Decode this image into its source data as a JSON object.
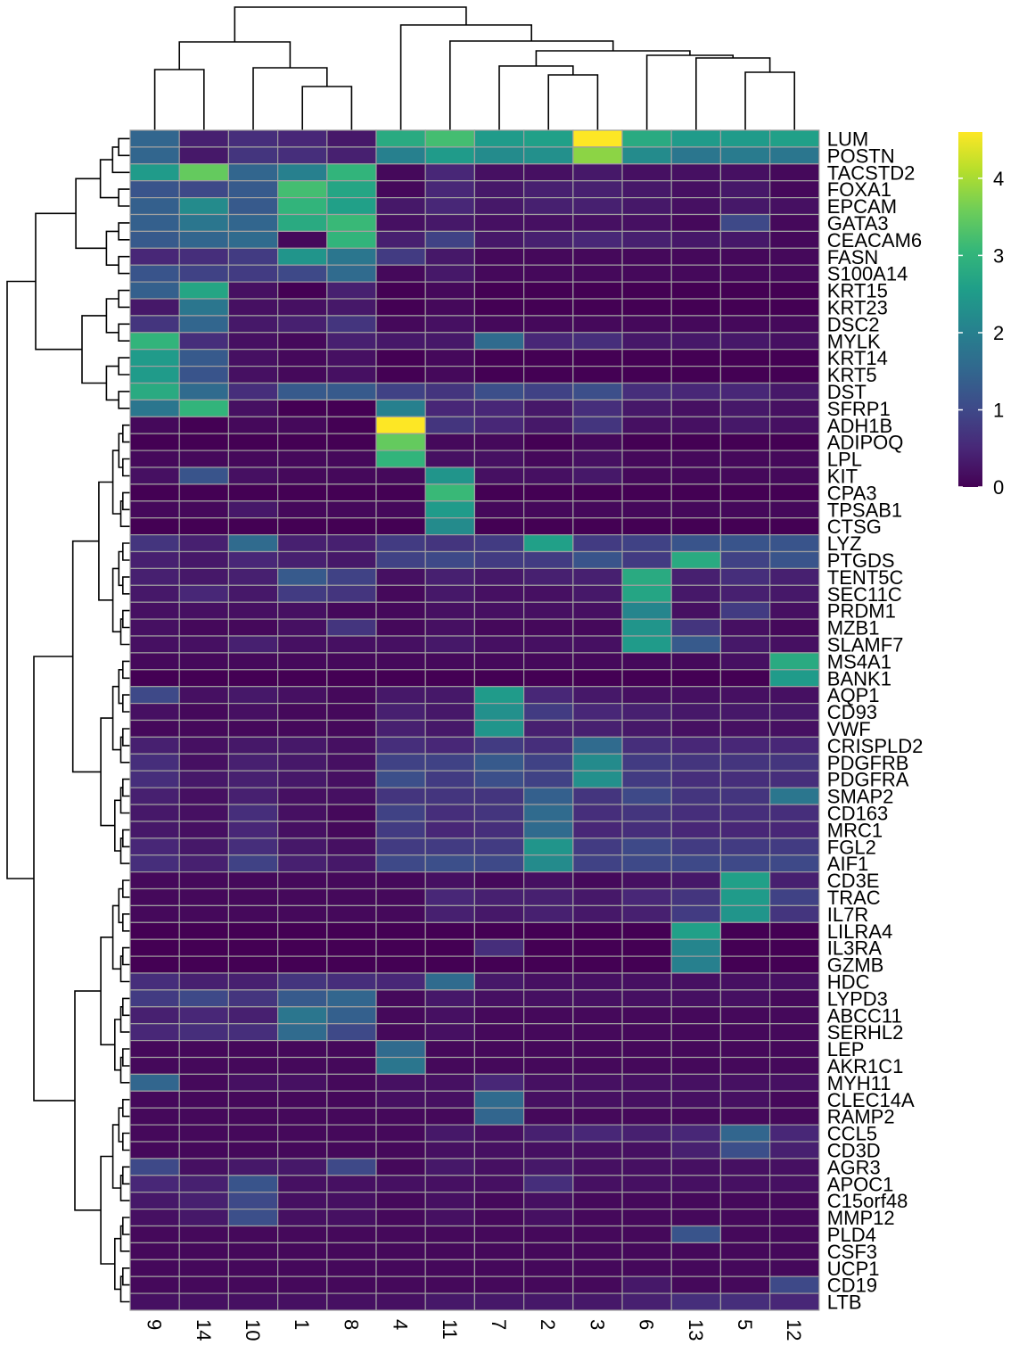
{
  "chart_data": {
    "type": "heatmap",
    "title": "",
    "columns": [
      "9",
      "14",
      "10",
      "1",
      "8",
      "4",
      "11",
      "7",
      "2",
      "3",
      "6",
      "13",
      "5",
      "12"
    ],
    "rows": [
      "LUM",
      "POSTN",
      "TACSTD2",
      "FOXA1",
      "EPCAM",
      "GATA3",
      "CEACAM6",
      "FASN",
      "S100A14",
      "KRT15",
      "KRT23",
      "DSC2",
      "MYLK",
      "KRT14",
      "KRT5",
      "DST",
      "SFRP1",
      "ADH1B",
      "ADIPOQ",
      "LPL",
      "KIT",
      "CPA3",
      "TPSAB1",
      "CTSG",
      "LYZ",
      "PTGDS",
      "TENT5C",
      "SEC11C",
      "PRDM1",
      "MZB1",
      "SLAMF7",
      "MS4A1",
      "BANK1",
      "AQP1",
      "CD93",
      "VWF",
      "CRISPLD2",
      "PDGFRB",
      "PDGFRA",
      "SMAP2",
      "CD163",
      "MRC1",
      "FGL2",
      "AIF1",
      "CD3E",
      "TRAC",
      "IL7R",
      "LILRA4",
      "IL3RA",
      "GZMB",
      "HDC",
      "LYPD3",
      "ABCC11",
      "SERHL2",
      "LEP",
      "AKR1C1",
      "MYH11",
      "CLEC14A",
      "RAMP2",
      "CCL5",
      "CD3D",
      "AGR3",
      "APOC1",
      "C15orf48",
      "MMP12",
      "PLD4",
      "CSF3",
      "UCP1",
      "CD19",
      "LTB"
    ],
    "values": [
      [
        1.5,
        0.4,
        0.6,
        0.5,
        0.3,
        2.8,
        3.2,
        2.5,
        2.6,
        4.6,
        2.8,
        2.5,
        2.5,
        2.6
      ],
      [
        1.5,
        0.3,
        0.7,
        0.6,
        0.4,
        2.0,
        2.5,
        2.2,
        2.3,
        3.8,
        2.2,
        1.8,
        1.9,
        1.8
      ],
      [
        2.5,
        3.5,
        1.5,
        2.0,
        3.0,
        0.1,
        0.5,
        0.2,
        0.2,
        0.3,
        0.2,
        0.2,
        0.2,
        0.1
      ],
      [
        1.2,
        1.0,
        1.3,
        3.2,
        2.7,
        0.1,
        0.5,
        0.3,
        0.4,
        0.4,
        0.3,
        0.2,
        0.3,
        0.1
      ],
      [
        1.4,
        2.2,
        1.3,
        3.0,
        2.6,
        0.3,
        0.5,
        0.3,
        0.4,
        0.4,
        0.3,
        0.2,
        0.3,
        0.2
      ],
      [
        1.4,
        1.8,
        1.5,
        2.8,
        3.1,
        0.2,
        0.3,
        0.2,
        0.2,
        0.2,
        0.2,
        0.1,
        1.0,
        0.1
      ],
      [
        1.3,
        1.5,
        1.6,
        0.1,
        3.0,
        0.4,
        0.9,
        0.3,
        0.4,
        0.5,
        0.4,
        0.3,
        0.3,
        0.1
      ],
      [
        0.5,
        0.6,
        0.8,
        2.4,
        1.8,
        0.8,
        0.3,
        0.1,
        0.1,
        0.1,
        0.1,
        0.1,
        0.1,
        0.1
      ],
      [
        1.2,
        0.9,
        0.8,
        1.0,
        1.6,
        0.1,
        0.3,
        0.1,
        0.1,
        0.1,
        0.1,
        0.1,
        0.1,
        0.1
      ],
      [
        1.4,
        2.7,
        0.2,
        0.0,
        0.4,
        0.0,
        0.1,
        0.0,
        0.0,
        0.0,
        0.0,
        0.0,
        0.0,
        0.0
      ],
      [
        0.3,
        1.8,
        0.2,
        0.2,
        0.3,
        0.0,
        0.1,
        0.0,
        0.0,
        0.0,
        0.0,
        0.0,
        0.0,
        0.0
      ],
      [
        0.7,
        1.5,
        0.3,
        0.4,
        0.7,
        0.1,
        0.2,
        0.1,
        0.1,
        0.1,
        0.1,
        0.1,
        0.1,
        0.1
      ],
      [
        3.0,
        0.6,
        0.2,
        0.1,
        0.4,
        0.3,
        0.3,
        1.6,
        0.5,
        0.6,
        0.3,
        0.3,
        0.3,
        0.2
      ],
      [
        2.5,
        1.3,
        0.2,
        0.1,
        0.2,
        0.0,
        0.1,
        0.0,
        0.0,
        0.0,
        0.0,
        0.0,
        0.0,
        0.0
      ],
      [
        2.5,
        1.2,
        0.2,
        0.1,
        0.2,
        0.0,
        0.1,
        0.0,
        0.0,
        0.0,
        0.0,
        0.0,
        0.0,
        0.0
      ],
      [
        2.8,
        1.6,
        0.6,
        1.3,
        1.3,
        0.9,
        0.7,
        1.1,
        0.9,
        1.1,
        0.6,
        0.5,
        0.5,
        0.3
      ],
      [
        1.8,
        3.0,
        0.2,
        0.0,
        0.0,
        2.0,
        0.5,
        0.5,
        0.3,
        0.6,
        0.3,
        0.2,
        0.3,
        0.2
      ],
      [
        0.1,
        0.0,
        0.1,
        0.1,
        0.0,
        4.6,
        0.7,
        0.5,
        0.3,
        0.7,
        0.2,
        0.2,
        0.3,
        0.2
      ],
      [
        0.0,
        0.0,
        0.0,
        0.0,
        0.0,
        3.5,
        0.1,
        0.1,
        0.0,
        0.1,
        0.0,
        0.0,
        0.0,
        0.0
      ],
      [
        0.1,
        0.1,
        0.1,
        0.1,
        0.1,
        3.0,
        0.2,
        0.2,
        0.1,
        0.2,
        0.1,
        0.1,
        0.1,
        0.1
      ],
      [
        0.2,
        1.2,
        0.2,
        0.1,
        0.1,
        0.1,
        2.4,
        0.2,
        0.2,
        0.3,
        0.1,
        0.1,
        0.1,
        0.1
      ],
      [
        0.0,
        0.0,
        0.0,
        0.0,
        0.0,
        0.0,
        3.1,
        0.0,
        0.0,
        0.0,
        0.0,
        0.0,
        0.0,
        0.0
      ],
      [
        0.1,
        0.1,
        0.3,
        0.1,
        0.1,
        0.1,
        2.5,
        0.1,
        0.1,
        0.1,
        0.1,
        0.1,
        0.1,
        0.1
      ],
      [
        0.0,
        0.0,
        0.0,
        0.0,
        0.0,
        0.0,
        2.2,
        0.0,
        0.0,
        0.0,
        0.0,
        0.0,
        0.0,
        0.0
      ],
      [
        0.7,
        0.4,
        1.6,
        0.4,
        0.4,
        0.8,
        0.7,
        0.8,
        2.6,
        0.8,
        0.9,
        1.2,
        1.2,
        1.2
      ],
      [
        0.4,
        0.3,
        0.5,
        0.4,
        0.3,
        0.9,
        1.0,
        0.8,
        0.8,
        1.2,
        0.8,
        2.8,
        0.9,
        1.2
      ],
      [
        0.4,
        0.3,
        0.4,
        1.3,
        0.9,
        0.2,
        0.4,
        0.3,
        0.4,
        0.4,
        2.8,
        0.4,
        0.6,
        0.4
      ],
      [
        0.3,
        0.5,
        0.3,
        0.8,
        0.7,
        0.1,
        0.3,
        0.2,
        0.2,
        0.3,
        2.7,
        0.3,
        0.4,
        0.3
      ],
      [
        0.2,
        0.2,
        0.2,
        0.2,
        0.1,
        0.1,
        0.2,
        0.2,
        0.2,
        0.2,
        2.1,
        0.2,
        0.8,
        0.2
      ],
      [
        0.2,
        0.1,
        0.1,
        0.2,
        0.7,
        0.1,
        0.2,
        0.1,
        0.1,
        0.1,
        2.4,
        0.7,
        0.2,
        0.1
      ],
      [
        0.2,
        0.2,
        0.4,
        0.2,
        0.2,
        0.2,
        0.3,
        0.2,
        0.2,
        0.2,
        2.5,
        1.3,
        0.3,
        0.2
      ],
      [
        0.1,
        0.1,
        0.1,
        0.1,
        0.1,
        0.1,
        0.1,
        0.1,
        0.1,
        0.1,
        0.1,
        0.1,
        0.2,
        2.8
      ],
      [
        0.0,
        0.0,
        0.0,
        0.0,
        0.0,
        0.0,
        0.0,
        0.0,
        0.0,
        0.0,
        0.0,
        0.0,
        0.0,
        2.5
      ],
      [
        1.0,
        0.2,
        0.3,
        0.2,
        0.1,
        0.3,
        0.3,
        2.5,
        0.5,
        0.3,
        0.2,
        0.2,
        0.2,
        0.2
      ],
      [
        0.2,
        0.1,
        0.2,
        0.1,
        0.1,
        0.4,
        0.3,
        2.3,
        0.8,
        0.5,
        0.4,
        0.3,
        0.3,
        0.3
      ],
      [
        0.1,
        0.1,
        0.1,
        0.1,
        0.1,
        0.4,
        0.3,
        2.4,
        0.4,
        0.4,
        0.3,
        0.2,
        0.2,
        0.2
      ],
      [
        0.4,
        0.2,
        0.3,
        0.3,
        0.2,
        0.6,
        0.5,
        0.8,
        0.6,
        1.6,
        0.6,
        0.5,
        0.5,
        0.5
      ],
      [
        0.6,
        0.2,
        0.4,
        0.3,
        0.2,
        0.9,
        0.9,
        1.3,
        0.9,
        2.2,
        0.8,
        0.7,
        0.7,
        0.7
      ],
      [
        0.6,
        0.3,
        0.4,
        0.3,
        0.2,
        1.1,
        0.8,
        1.1,
        0.9,
        2.3,
        0.8,
        0.6,
        0.6,
        0.6
      ],
      [
        0.4,
        0.2,
        0.4,
        0.2,
        0.2,
        0.7,
        0.7,
        0.7,
        1.4,
        0.7,
        1.0,
        0.7,
        0.7,
        1.8
      ],
      [
        0.3,
        0.2,
        0.6,
        0.2,
        0.1,
        0.9,
        0.6,
        0.7,
        1.6,
        0.6,
        0.7,
        0.6,
        0.6,
        0.6
      ],
      [
        0.3,
        0.2,
        0.5,
        0.2,
        0.1,
        0.8,
        0.5,
        0.6,
        1.6,
        0.5,
        0.6,
        0.5,
        0.5,
        0.5
      ],
      [
        0.5,
        0.3,
        0.6,
        0.3,
        0.2,
        0.8,
        0.8,
        0.8,
        2.4,
        0.8,
        1.0,
        0.8,
        0.8,
        0.8
      ],
      [
        0.6,
        0.4,
        0.9,
        0.4,
        0.3,
        1.0,
        1.1,
        1.0,
        2.2,
        0.9,
        1.0,
        1.0,
        1.0,
        1.0
      ],
      [
        0.1,
        0.1,
        0.1,
        0.1,
        0.1,
        0.1,
        0.2,
        0.1,
        0.2,
        0.1,
        0.2,
        0.3,
        2.6,
        0.4
      ],
      [
        0.1,
        0.1,
        0.1,
        0.1,
        0.1,
        0.1,
        0.5,
        0.4,
        0.4,
        0.3,
        0.5,
        0.7,
        2.5,
        0.9
      ],
      [
        0.1,
        0.1,
        0.1,
        0.1,
        0.1,
        0.1,
        0.4,
        0.3,
        0.4,
        0.3,
        0.4,
        0.8,
        2.4,
        0.7
      ],
      [
        0.0,
        0.0,
        0.0,
        0.0,
        0.0,
        0.0,
        0.0,
        0.0,
        0.0,
        0.0,
        0.0,
        2.6,
        0.0,
        0.0
      ],
      [
        0.0,
        0.0,
        0.0,
        0.0,
        0.0,
        0.0,
        0.0,
        0.6,
        0.0,
        0.0,
        0.0,
        2.1,
        0.0,
        0.0
      ],
      [
        0.0,
        0.0,
        0.0,
        0.0,
        0.0,
        0.0,
        0.0,
        0.0,
        0.0,
        0.0,
        0.0,
        2.0,
        0.0,
        0.0
      ],
      [
        0.6,
        0.4,
        0.4,
        0.7,
        0.6,
        0.5,
        1.6,
        0.3,
        0.2,
        0.2,
        0.2,
        0.2,
        0.2,
        0.2
      ],
      [
        0.8,
        1.0,
        0.7,
        1.3,
        1.5,
        0.1,
        0.3,
        0.2,
        0.2,
        0.2,
        0.2,
        0.2,
        0.2,
        0.1
      ],
      [
        0.4,
        0.5,
        0.4,
        1.8,
        1.4,
        0.1,
        0.2,
        0.1,
        0.1,
        0.1,
        0.1,
        0.1,
        0.1,
        0.1
      ],
      [
        0.5,
        0.6,
        0.6,
        1.6,
        1.0,
        0.1,
        0.2,
        0.1,
        0.1,
        0.1,
        0.1,
        0.1,
        0.1,
        0.1
      ],
      [
        0.1,
        0.1,
        0.1,
        0.1,
        0.1,
        1.6,
        0.1,
        0.1,
        0.1,
        0.1,
        0.1,
        0.1,
        0.1,
        0.1
      ],
      [
        0.1,
        0.1,
        0.1,
        0.1,
        0.1,
        1.8,
        0.1,
        0.1,
        0.1,
        0.1,
        0.1,
        0.1,
        0.1,
        0.1
      ],
      [
        1.5,
        0.1,
        0.2,
        0.2,
        0.1,
        0.2,
        0.2,
        0.5,
        0.2,
        0.2,
        0.2,
        0.2,
        0.2,
        0.2
      ],
      [
        0.1,
        0.1,
        0.1,
        0.1,
        0.1,
        0.2,
        0.2,
        1.6,
        0.2,
        0.2,
        0.2,
        0.2,
        0.2,
        0.1
      ],
      [
        0.1,
        0.1,
        0.1,
        0.1,
        0.1,
        0.1,
        0.1,
        1.5,
        0.1,
        0.1,
        0.1,
        0.1,
        0.1,
        0.1
      ],
      [
        0.1,
        0.1,
        0.1,
        0.1,
        0.1,
        0.1,
        0.3,
        0.2,
        0.4,
        0.5,
        0.4,
        0.5,
        1.5,
        0.5
      ],
      [
        0.1,
        0.1,
        0.1,
        0.1,
        0.1,
        0.1,
        0.2,
        0.2,
        0.2,
        0.2,
        0.2,
        0.4,
        1.1,
        0.4
      ],
      [
        1.0,
        0.2,
        0.3,
        0.3,
        1.0,
        0.1,
        0.3,
        0.2,
        0.3,
        0.2,
        0.2,
        0.2,
        0.2,
        0.2
      ],
      [
        0.5,
        0.4,
        1.2,
        0.2,
        0.2,
        0.2,
        0.2,
        0.2,
        0.6,
        0.2,
        0.2,
        0.2,
        0.2,
        0.2
      ],
      [
        0.3,
        0.4,
        1.0,
        0.2,
        0.2,
        0.1,
        0.2,
        0.1,
        0.2,
        0.1,
        0.1,
        0.1,
        0.1,
        0.1
      ],
      [
        0.2,
        0.3,
        1.1,
        0.2,
        0.2,
        0.1,
        0.2,
        0.1,
        0.2,
        0.1,
        0.1,
        0.1,
        0.1,
        0.1
      ],
      [
        0.1,
        0.1,
        0.1,
        0.1,
        0.1,
        0.1,
        0.1,
        0.1,
        0.1,
        0.1,
        0.1,
        1.2,
        0.1,
        0.1
      ],
      [
        0.1,
        0.1,
        0.1,
        0.1,
        0.1,
        0.1,
        0.1,
        0.1,
        0.1,
        0.1,
        0.1,
        0.1,
        0.1,
        0.1
      ],
      [
        0.1,
        0.1,
        0.1,
        0.1,
        0.1,
        0.1,
        0.1,
        0.1,
        0.1,
        0.1,
        0.1,
        0.1,
        0.1,
        0.1
      ],
      [
        0.1,
        0.1,
        0.1,
        0.1,
        0.1,
        0.1,
        0.1,
        0.1,
        0.1,
        0.1,
        0.3,
        0.1,
        0.1,
        1.0
      ],
      [
        0.2,
        0.2,
        0.2,
        0.2,
        0.2,
        0.2,
        0.3,
        0.3,
        0.3,
        0.3,
        0.4,
        0.6,
        0.6,
        0.5
      ]
    ],
    "color_scale": {
      "min": 0,
      "max": 4.6,
      "ticks": [
        0,
        1,
        2,
        3,
        4
      ],
      "colormap": "viridis",
      "stops": [
        "#440154",
        "#482878",
        "#3E4A89",
        "#31688E",
        "#26828E",
        "#1F9E89",
        "#35B779",
        "#6DCD59",
        "#B4DE2C",
        "#FDE725"
      ]
    },
    "cell_border_color": "#A0A0A0",
    "row_dendrogram": true,
    "column_dendrogram": true,
    "legend_position": "top-right"
  }
}
